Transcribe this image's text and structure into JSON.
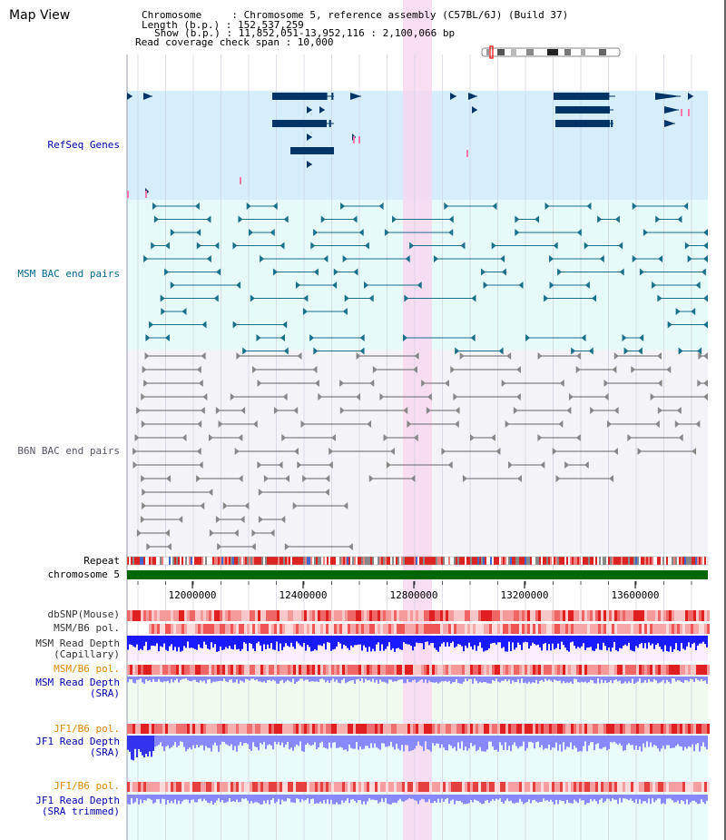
{
  "title": "Map View",
  "info": {
    "chromosome": "Chromosome     : Chromosome 5, reference assembly (C57BL/6J) (Build 37)",
    "length": "Length (b.p.) : 152,537,259",
    "show": "Show (b.p.) : 11,852,051-13,952,116 : 2,100,066 bp",
    "coverage": "Read coverage check span : 10,000"
  },
  "tracks": {
    "refseq": "RefSeq Genes",
    "msm_bac": "MSM BAC end pairs",
    "b6n_bac": "B6N BAC end pairs",
    "repeat": "Repeat",
    "chromosome": "chromosome 5",
    "dbsnp": "dbSNP(Mouse)",
    "msm_b6_pol": "MSM/B6 pol.",
    "msm_depth_cap_1": "MSM Read Depth",
    "msm_depth_cap_2": "(Capillary)",
    "msm_b6_pol2": "MSM/B6 pol.",
    "msm_depth_sra_1": "MSM Read Depth",
    "msm_depth_sra_2": "(SRA)",
    "jf1_b6_pol": "JF1/B6 pol.",
    "jf1_depth_1": "JF1 Read Depth",
    "jf1_depth_2": "(SRA)",
    "jf1_b6_pol2": "JF1/B6 pol.",
    "jf1_trim_1": "JF1 Read Depth",
    "jf1_trim_2": "(SRA trimmed)"
  },
  "axis": {
    "ticks": [
      "12000000",
      "12400000",
      "12800000",
      "13200000",
      "13600000"
    ]
  },
  "colors": {
    "refseq_bg": "#d6eefa",
    "msm_bg": "#e6fafa",
    "b6n_bg": "#f3f3f8",
    "highlight": "#f8d8f0",
    "gene": "#003366",
    "msm_feature": "#1a6f8a",
    "b6n_feature": "#666666",
    "chromosome_bar": "#006600",
    "depth_blue": "#1a1aff",
    "depth_light": "#8888ff",
    "pol_red": "#e83030",
    "label_blue": "#0000aa",
    "label_teal": "#006688",
    "label_orange": "#dd8800"
  }
}
